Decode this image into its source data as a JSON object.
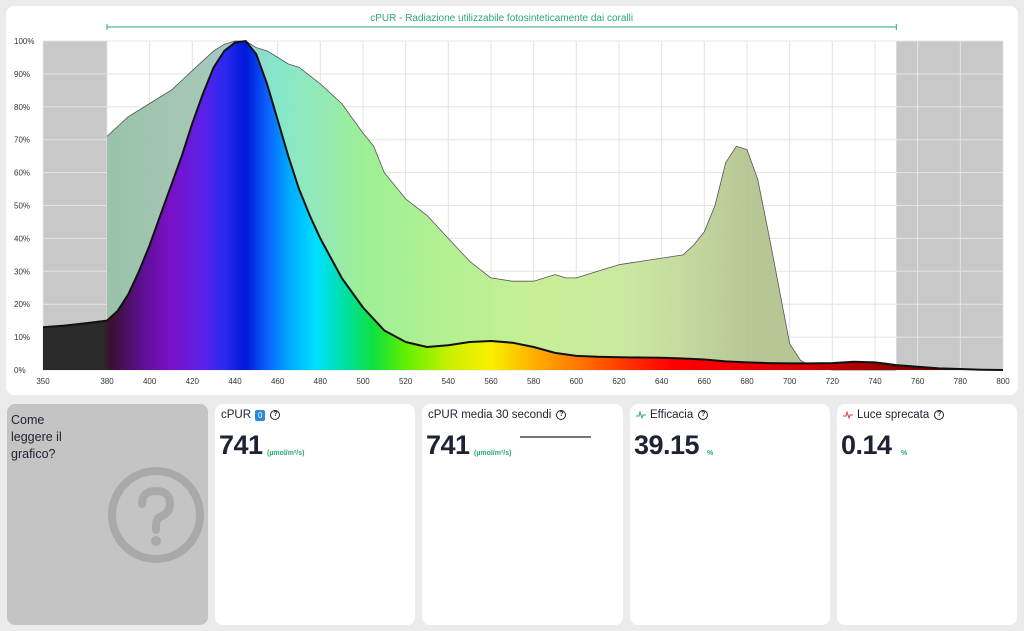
{
  "chart_data": {
    "type": "area",
    "title": "cPUR - Radiazione utilizzabile fotosinteticamente dai coralli",
    "xlabel": "",
    "ylabel": "",
    "xlim": [
      350,
      800
    ],
    "ylim": [
      0,
      100
    ],
    "x_ticks": [
      350,
      380,
      400,
      420,
      440,
      460,
      480,
      500,
      520,
      540,
      560,
      580,
      600,
      620,
      640,
      660,
      680,
      700,
      720,
      740,
      760,
      780,
      800
    ],
    "y_ticks": [
      0,
      10,
      20,
      30,
      40,
      50,
      60,
      70,
      80,
      90,
      100
    ],
    "y_tick_labels": [
      "0%",
      "10%",
      "20%",
      "30%",
      "40%",
      "50%",
      "60%",
      "70%",
      "80%",
      "90%",
      "100%"
    ],
    "shaded_ranges": [
      [
        350,
        380
      ],
      [
        750,
        800
      ]
    ],
    "bracket_range": [
      380,
      750
    ],
    "grid": true,
    "series": [
      {
        "x": [
          380,
          385,
          390,
          395,
          400,
          405,
          410,
          415,
          420,
          425,
          430,
          435,
          440,
          445,
          450,
          455,
          460,
          465,
          470,
          480,
          490,
          500,
          505,
          510,
          520,
          530,
          540,
          550,
          560,
          570,
          580,
          590,
          595,
          600,
          610,
          620,
          630,
          640,
          650,
          655,
          660,
          665,
          670,
          675,
          680,
          685,
          690,
          695,
          700,
          705,
          710,
          715,
          720,
          750
        ],
        "y": [
          71,
          74,
          77,
          79,
          81,
          83,
          85,
          88,
          91,
          94,
          97,
          99,
          100,
          100,
          98,
          97,
          95,
          93,
          92,
          87,
          81,
          72,
          68,
          60,
          52,
          47,
          40,
          33,
          28,
          27,
          27,
          29,
          28,
          28,
          30,
          32,
          33,
          34,
          35,
          38,
          42,
          50,
          63,
          68,
          67,
          58,
          42,
          25,
          8,
          3,
          1,
          0.5,
          0,
          0
        ],
        "fill": "gradient-light",
        "stroke": "#555555"
      },
      {
        "x": [
          350,
          360,
          370,
          380,
          385,
          390,
          395,
          400,
          405,
          410,
          415,
          420,
          425,
          430,
          435,
          440,
          445,
          450,
          455,
          460,
          465,
          470,
          475,
          480,
          490,
          500,
          510,
          520,
          530,
          540,
          550,
          560,
          570,
          580,
          590,
          600,
          610,
          620,
          630,
          640,
          650,
          660,
          670,
          680,
          690,
          700,
          710,
          720,
          730,
          740,
          750,
          760,
          770,
          780,
          790,
          800
        ],
        "y": [
          13,
          13.5,
          14.2,
          15,
          18,
          23,
          30,
          38,
          47,
          56,
          65,
          75,
          84,
          92,
          97,
          99.5,
          100,
          96,
          87,
          76,
          65,
          55,
          47,
          40,
          28,
          19,
          12,
          8.5,
          7,
          7.5,
          8.5,
          8.8,
          8.3,
          7,
          5.2,
          4.3,
          4,
          3.9,
          3.8,
          3.7,
          3.5,
          3.2,
          2.6,
          2.3,
          2.1,
          2,
          2,
          2.1,
          2.5,
          2.3,
          1.5,
          1,
          0.5,
          0.3,
          0.1,
          0
        ],
        "fill": "spectrum",
        "stroke": "#111111"
      }
    ]
  },
  "help": {
    "text": "Come leggere il grafico?",
    "icon": "question-circle-icon"
  },
  "cards": {
    "cpur": {
      "title": "cPUR",
      "badge": "0",
      "value": "741",
      "unit": "(µmol/m²/s)"
    },
    "cpur30": {
      "title": "cPUR media 30 secondi",
      "value": "741",
      "unit": "(µmol/m²/s)"
    },
    "efficacia": {
      "title": "Efficacia",
      "value": "39.15",
      "unit": "%",
      "icon": "pulse-line-icon",
      "icon_color": "#2aa876"
    },
    "luce": {
      "title": "Luce sprecata",
      "value": "0.14",
      "unit": "%",
      "icon": "pulse-line-icon",
      "icon_color": "#e33b3b"
    }
  }
}
